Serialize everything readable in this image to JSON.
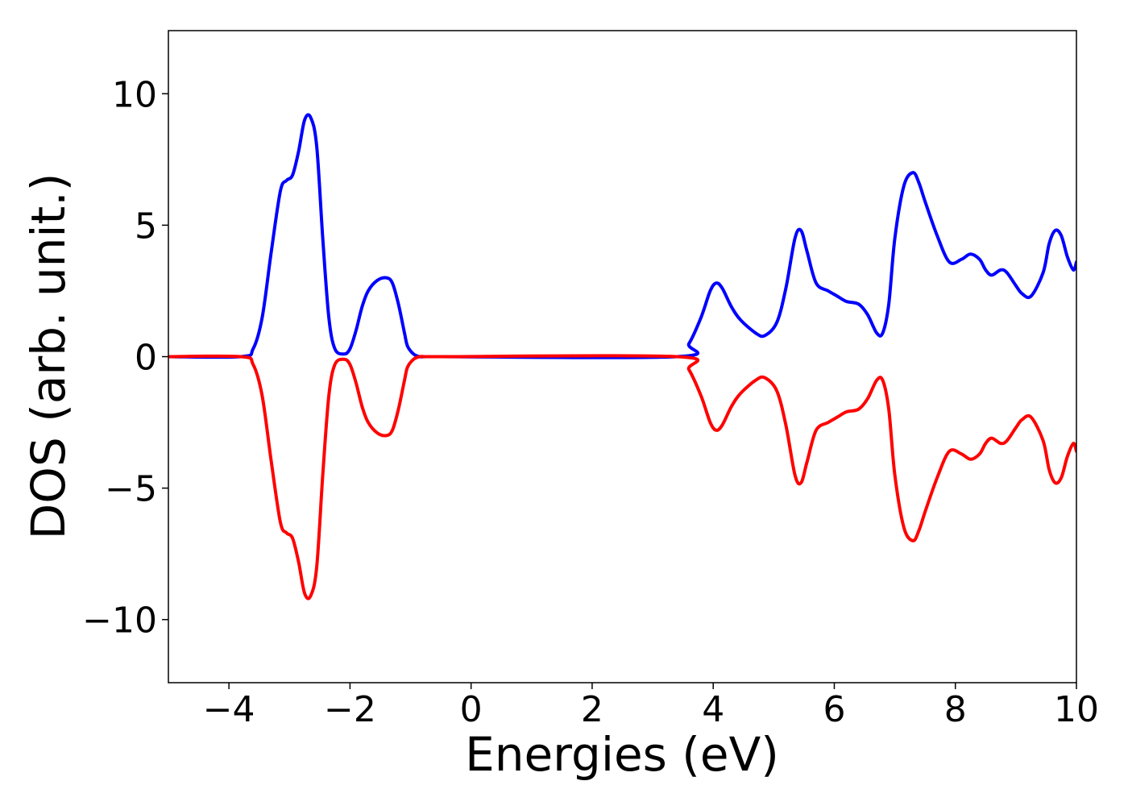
{
  "chart_data": {
    "type": "line",
    "title": "",
    "xlabel": "Energies (eV)",
    "ylabel": "DOS (arb. unit.)",
    "xlim": [
      -5,
      10
    ],
    "ylim": [
      -12.4,
      12.4
    ],
    "grid": false,
    "x_ticks": [
      -4,
      -2,
      0,
      2,
      4,
      6,
      8,
      10
    ],
    "x_tick_labels": [
      "−4",
      "−2",
      "0",
      "2",
      "4",
      "6",
      "8",
      "10"
    ],
    "y_ticks": [
      -10,
      -5,
      0,
      5,
      10
    ],
    "y_tick_labels": [
      "−10",
      "−5",
      "0",
      "5",
      "10"
    ],
    "series": [
      {
        "color": "#0000ff",
        "x": [
          -5.0,
          -3.8,
          -3.6,
          -3.45,
          -3.3,
          -3.15,
          -3.05,
          -2.95,
          -2.85,
          -2.75,
          -2.65,
          -2.55,
          -2.45,
          -2.35,
          -2.25,
          -2.1,
          -2.0,
          -1.9,
          -1.8,
          -1.7,
          -1.55,
          -1.4,
          -1.3,
          -1.2,
          -1.1,
          -1.05,
          -0.95,
          -0.85,
          -0.75,
          -0.6,
          -0.5,
          3.4,
          3.6,
          3.8,
          3.95,
          4.05,
          4.15,
          4.3,
          4.45,
          4.7,
          4.85,
          5.05,
          5.2,
          5.35,
          5.45,
          5.55,
          5.7,
          5.9,
          6.05,
          6.2,
          6.4,
          6.55,
          6.7,
          6.8,
          6.9,
          7.0,
          7.15,
          7.3,
          7.4,
          7.5,
          7.7,
          7.9,
          8.1,
          8.25,
          8.4,
          8.5,
          8.6,
          8.75,
          8.85,
          9.0,
          9.1,
          9.25,
          9.45,
          9.55,
          9.65,
          9.75,
          9.85,
          9.95,
          10.0
        ],
        "y": [
          0.0,
          0.0,
          0.3,
          1.5,
          4.0,
          6.3,
          6.7,
          6.9,
          7.8,
          9.0,
          9.1,
          8.0,
          4.5,
          1.5,
          0.3,
          0.1,
          0.3,
          1.0,
          1.9,
          2.5,
          2.9,
          3.0,
          2.8,
          2.0,
          0.9,
          0.4,
          0.1,
          0.0,
          0.0,
          0.0,
          0.0,
          0.0,
          0.5,
          1.5,
          2.5,
          2.8,
          2.6,
          1.9,
          1.4,
          0.9,
          0.8,
          1.3,
          2.6,
          4.5,
          4.8,
          4.0,
          2.8,
          2.5,
          2.3,
          2.1,
          2.0,
          1.6,
          0.9,
          0.9,
          2.0,
          4.5,
          6.5,
          7.0,
          6.6,
          5.9,
          4.6,
          3.6,
          3.7,
          3.9,
          3.7,
          3.3,
          3.1,
          3.3,
          3.2,
          2.7,
          2.4,
          2.3,
          3.2,
          4.3,
          4.8,
          4.6,
          3.8,
          3.3,
          3.6
        ]
      },
      {
        "color": "#ff0000",
        "x": [
          -5.0,
          -3.8,
          -3.6,
          -3.45,
          -3.3,
          -3.15,
          -3.05,
          -2.95,
          -2.85,
          -2.75,
          -2.65,
          -2.55,
          -2.45,
          -2.35,
          -2.25,
          -2.1,
          -2.0,
          -1.9,
          -1.8,
          -1.7,
          -1.55,
          -1.4,
          -1.3,
          -1.2,
          -1.1,
          -1.05,
          -0.95,
          -0.85,
          -0.75,
          -0.6,
          -0.5,
          3.4,
          3.6,
          3.8,
          3.95,
          4.05,
          4.15,
          4.3,
          4.45,
          4.7,
          4.85,
          5.05,
          5.2,
          5.35,
          5.45,
          5.55,
          5.7,
          5.9,
          6.05,
          6.2,
          6.4,
          6.55,
          6.7,
          6.8,
          6.9,
          7.0,
          7.15,
          7.3,
          7.4,
          7.5,
          7.7,
          7.9,
          8.1,
          8.25,
          8.4,
          8.5,
          8.6,
          8.75,
          8.85,
          9.0,
          9.1,
          9.25,
          9.45,
          9.55,
          9.65,
          9.75,
          9.85,
          9.95,
          10.0
        ],
        "y": [
          -0.0,
          -0.0,
          -0.3,
          -1.5,
          -4.0,
          -6.3,
          -6.7,
          -6.9,
          -7.8,
          -9.0,
          -9.1,
          -8.0,
          -4.5,
          -1.5,
          -0.3,
          -0.1,
          -0.3,
          -1.0,
          -1.9,
          -2.5,
          -2.9,
          -3.0,
          -2.8,
          -2.0,
          -0.9,
          -0.4,
          -0.1,
          -0.0,
          -0.0,
          -0.0,
          -0.0,
          -0.0,
          -0.5,
          -1.5,
          -2.5,
          -2.8,
          -2.6,
          -1.9,
          -1.4,
          -0.9,
          -0.8,
          -1.3,
          -2.6,
          -4.5,
          -4.8,
          -4.0,
          -2.8,
          -2.5,
          -2.3,
          -2.1,
          -2.0,
          -1.6,
          -0.9,
          -0.9,
          -2.0,
          -4.5,
          -6.5,
          -7.0,
          -6.6,
          -5.9,
          -4.6,
          -3.6,
          -3.7,
          -3.9,
          -3.7,
          -3.3,
          -3.1,
          -3.3,
          -3.2,
          -2.7,
          -2.4,
          -2.3,
          -3.2,
          -4.3,
          -4.8,
          -4.6,
          -3.8,
          -3.3,
          -3.6
        ]
      }
    ]
  }
}
